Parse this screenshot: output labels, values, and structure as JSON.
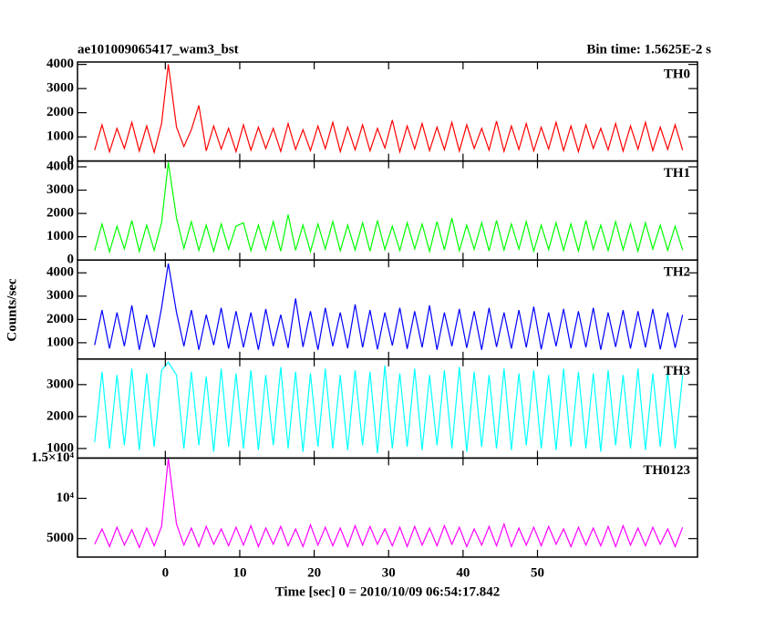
{
  "chart_data": {
    "type": "line",
    "title": "ae101009065417_wam3_bst",
    "subtitle": "Bin time: 1.5625E-2 s",
    "xlabel": "Time [sec] 0 = 2010/10/09 06:54:17.842",
    "ylabel": "Counts/sec",
    "xlim": [
      -11.8,
      71.5
    ],
    "xticks": [
      0,
      10,
      20,
      30,
      40,
      50
    ],
    "x": [
      -9.5,
      -8.5,
      -7.5,
      -6.5,
      -5.5,
      -4.5,
      -3.5,
      -2.5,
      -1.5,
      -0.5,
      0.4,
      1.5,
      2.5,
      3.5,
      4.5,
      5.5,
      6.5,
      7.5,
      8.5,
      9.5,
      10.5,
      11.5,
      12.5,
      13.5,
      14.5,
      15.5,
      16.5,
      17.5,
      18.5,
      19.5,
      20.5,
      21.5,
      22.5,
      23.5,
      24.5,
      25.5,
      26.5,
      27.5,
      28.5,
      29.5,
      30.5,
      31.5,
      32.5,
      33.5,
      34.5,
      35.5,
      36.5,
      37.5,
      38.5,
      39.5,
      40.5,
      41.5,
      42.5,
      43.5,
      44.5,
      45.5,
      46.5,
      47.5,
      48.5,
      49.5,
      50.5,
      51.5,
      52.5,
      53.5,
      54.5,
      55.5,
      56.5,
      57.5,
      58.5,
      59.5,
      60.5,
      61.5,
      62.5,
      63.5,
      64.5,
      65.5,
      66.5,
      67.5,
      68.5,
      69.5
    ],
    "panels": [
      {
        "name": "TH0",
        "color": "#ff0000",
        "ylim": [
          0,
          4100
        ],
        "yticks": [
          0,
          1000,
          2000,
          3000,
          4000
        ],
        "values": [
          450,
          1500,
          380,
          1350,
          520,
          1600,
          410,
          1450,
          360,
          1550,
          4000,
          1400,
          600,
          1300,
          2300,
          420,
          1450,
          500,
          1350,
          390,
          1500,
          450,
          1400,
          520,
          1350,
          400,
          1550,
          480,
          1300,
          430,
          1450,
          510,
          1600,
          390,
          1400,
          460,
          1500,
          420,
          1350,
          540,
          1700,
          380,
          1450,
          500,
          1550,
          430,
          1400,
          470,
          1600,
          410,
          1500,
          520,
          1350,
          450,
          1650,
          400,
          1450,
          480,
          1550,
          420,
          1400,
          500,
          1600,
          430,
          1450,
          390,
          1500,
          520,
          1350,
          460,
          1550,
          410,
          1450,
          490,
          1600,
          430,
          1400,
          480,
          1500,
          450
        ]
      },
      {
        "name": "TH1",
        "color": "#00ff00",
        "ylim": [
          0,
          4250
        ],
        "yticks": [
          0,
          1000,
          2000,
          3000,
          4000
        ],
        "values": [
          400,
          1550,
          350,
          1450,
          480,
          1700,
          370,
          1500,
          420,
          1600,
          4200,
          1800,
          500,
          1650,
          420,
          1500,
          380,
          1550,
          460,
          1450,
          1600,
          400,
          1500,
          450,
          1650,
          380,
          1950,
          420,
          1500,
          360,
          1550,
          470,
          1650,
          400,
          1500,
          430,
          1600,
          380,
          1700,
          450,
          1450,
          410,
          1600,
          480,
          1550,
          370,
          1650,
          440,
          1800,
          400,
          1500,
          460,
          1600,
          390,
          1700,
          430,
          1550,
          470,
          1650,
          380,
          1500,
          450,
          1600,
          420,
          1550,
          390,
          1700,
          460,
          1500,
          410,
          1650,
          440,
          1550,
          380,
          1600,
          470,
          1500,
          420,
          1450,
          430
        ]
      },
      {
        "name": "TH2",
        "color": "#0000ff",
        "ylim": [
          300,
          4550
        ],
        "yticks": [
          1000,
          2000,
          3000,
          4000
        ],
        "values": [
          900,
          2400,
          750,
          2300,
          850,
          2600,
          700,
          2200,
          800,
          2500,
          4400,
          2300,
          850,
          2400,
          700,
          2200,
          900,
          2500,
          750,
          2350,
          800,
          2300,
          700,
          2450,
          850,
          2200,
          780,
          2900,
          820,
          2350,
          700,
          2500,
          850,
          2300,
          760,
          2650,
          800,
          2400,
          720,
          2300,
          880,
          2500,
          740,
          2350,
          800,
          2600,
          700,
          2300,
          850,
          2450,
          780,
          2350,
          700,
          2500,
          820,
          2300,
          750,
          2400,
          800,
          2550,
          720,
          2300,
          850,
          2450,
          760,
          2350,
          800,
          2500,
          700,
          2300,
          820,
          2400,
          750,
          2350,
          800,
          2450,
          720,
          2300,
          780,
          2200
        ]
      },
      {
        "name": "TH3",
        "color": "#00ffff",
        "ylim": [
          700,
          3800
        ],
        "yticks": [
          1000,
          2000,
          3000
        ],
        "values": [
          1200,
          3400,
          1000,
          3300,
          1100,
          3500,
          950,
          3350,
          1050,
          3450,
          3700,
          3300,
          1000,
          3400,
          1100,
          3250,
          900,
          3500,
          1050,
          3350,
          1000,
          3450,
          950,
          3300,
          1100,
          3550,
          1000,
          3400,
          900,
          3350,
          1050,
          3500,
          1000,
          3300,
          950,
          3450,
          1100,
          3400,
          850,
          3600,
          1000,
          3350,
          1050,
          3500,
          950,
          3300,
          1100,
          3450,
          1000,
          3550,
          900,
          3400,
          1050,
          3300,
          1000,
          3500,
          950,
          3350,
          1100,
          3450,
          1000,
          3300,
          950,
          3500,
          1050,
          3400,
          1000,
          3350,
          900,
          3450,
          1100,
          3300,
          1000,
          3500,
          950,
          3350,
          1050,
          3400,
          1000,
          3300
        ]
      },
      {
        "name": "TH0123",
        "color": "#ff00ff",
        "ylim": [
          2700,
          15000
        ],
        "yticks": [
          5000,
          {
            "value": 10000,
            "label": "10⁴"
          },
          {
            "value": 15000,
            "label": "1.5×10⁴"
          }
        ],
        "values": [
          4300,
          6200,
          4000,
          6400,
          4200,
          6100,
          3900,
          6300,
          4100,
          6500,
          15000,
          6800,
          4200,
          6300,
          4000,
          6500,
          4300,
          6200,
          4100,
          6400,
          4200,
          6600,
          4000,
          6300,
          4300,
          6500,
          4100,
          6200,
          4000,
          6700,
          4200,
          6400,
          4100,
          6300,
          4000,
          6600,
          4200,
          6500,
          4300,
          6200,
          4100,
          6400,
          4000,
          6500,
          4200,
          6300,
          4100,
          6600,
          4300,
          6400,
          4000,
          6200,
          4200,
          6500,
          4100,
          6800,
          4000,
          6300,
          4200,
          6400,
          4100,
          6500,
          4300,
          6200,
          4000,
          6400,
          4200,
          6300,
          4100,
          6500,
          4000,
          6600,
          4200,
          6300,
          4100,
          6400,
          4300,
          6200,
          4000,
          6400
        ]
      }
    ]
  }
}
